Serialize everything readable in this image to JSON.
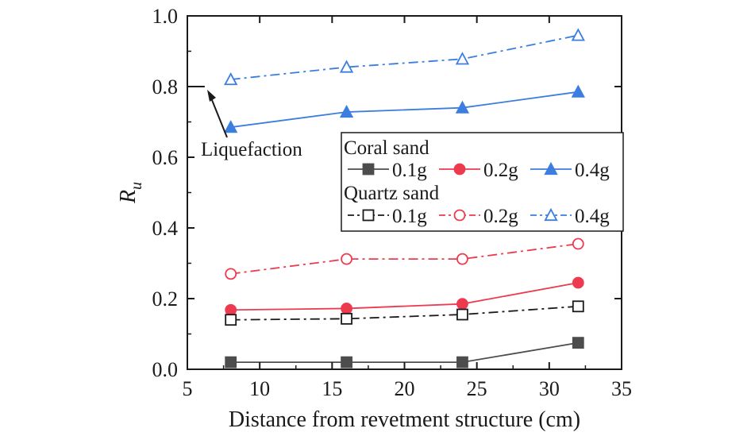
{
  "chart_data": {
    "type": "line",
    "xlabel": "Distance from revetment structure (cm)",
    "ylabel_main": "R",
    "ylabel_sub": "u",
    "xlim": [
      5,
      35
    ],
    "ylim": [
      0.0,
      1.0
    ],
    "xticks": [
      5,
      10,
      15,
      20,
      25,
      30,
      35
    ],
    "yticks": [
      0.0,
      0.2,
      0.4,
      0.6,
      0.8,
      1.0
    ],
    "xtick_labels": [
      "5",
      "10",
      "15",
      "20",
      "25",
      "30",
      "35"
    ],
    "ytick_labels": [
      "0.0",
      "0.2",
      "0.4",
      "0.6",
      "0.8",
      "1.0"
    ],
    "x": [
      8,
      16,
      24,
      32
    ],
    "legend": {
      "group1_title": "Coral sand",
      "group2_title": "Quartz sand",
      "placement": "center-right"
    },
    "series": [
      {
        "name": "0.1g",
        "group": "Coral sand",
        "values": [
          0.02,
          0.02,
          0.02,
          0.075
        ],
        "color": "#4d4d4d",
        "marker": "square",
        "filled": true,
        "dash": "solid"
      },
      {
        "name": "0.2g",
        "group": "Coral sand",
        "values": [
          0.168,
          0.172,
          0.185,
          0.245
        ],
        "color": "#ee3a4f",
        "marker": "circle",
        "filled": true,
        "dash": "solid"
      },
      {
        "name": "0.4g",
        "group": "Coral sand",
        "values": [
          0.685,
          0.728,
          0.74,
          0.785
        ],
        "color": "#3c7ee0",
        "marker": "triangle",
        "filled": true,
        "dash": "solid"
      },
      {
        "name": "0.1g",
        "group": "Quartz sand",
        "values": [
          0.14,
          0.143,
          0.155,
          0.178
        ],
        "color": "#1a1a1a",
        "marker": "square",
        "filled": false,
        "dash": "dashdot"
      },
      {
        "name": "0.2g",
        "group": "Quartz sand",
        "values": [
          0.27,
          0.312,
          0.312,
          0.355
        ],
        "color": "#ee3a4f",
        "marker": "circle",
        "filled": false,
        "dash": "dashdot"
      },
      {
        "name": "0.4g",
        "group": "Quartz sand",
        "values": [
          0.82,
          0.855,
          0.878,
          0.945
        ],
        "color": "#3c7ee0",
        "marker": "triangle",
        "filled": false,
        "dash": "dashdot"
      }
    ],
    "annotation": {
      "text": "Liquefaction",
      "y": 0.8,
      "x_start": 5,
      "x_end": 6.2
    }
  }
}
